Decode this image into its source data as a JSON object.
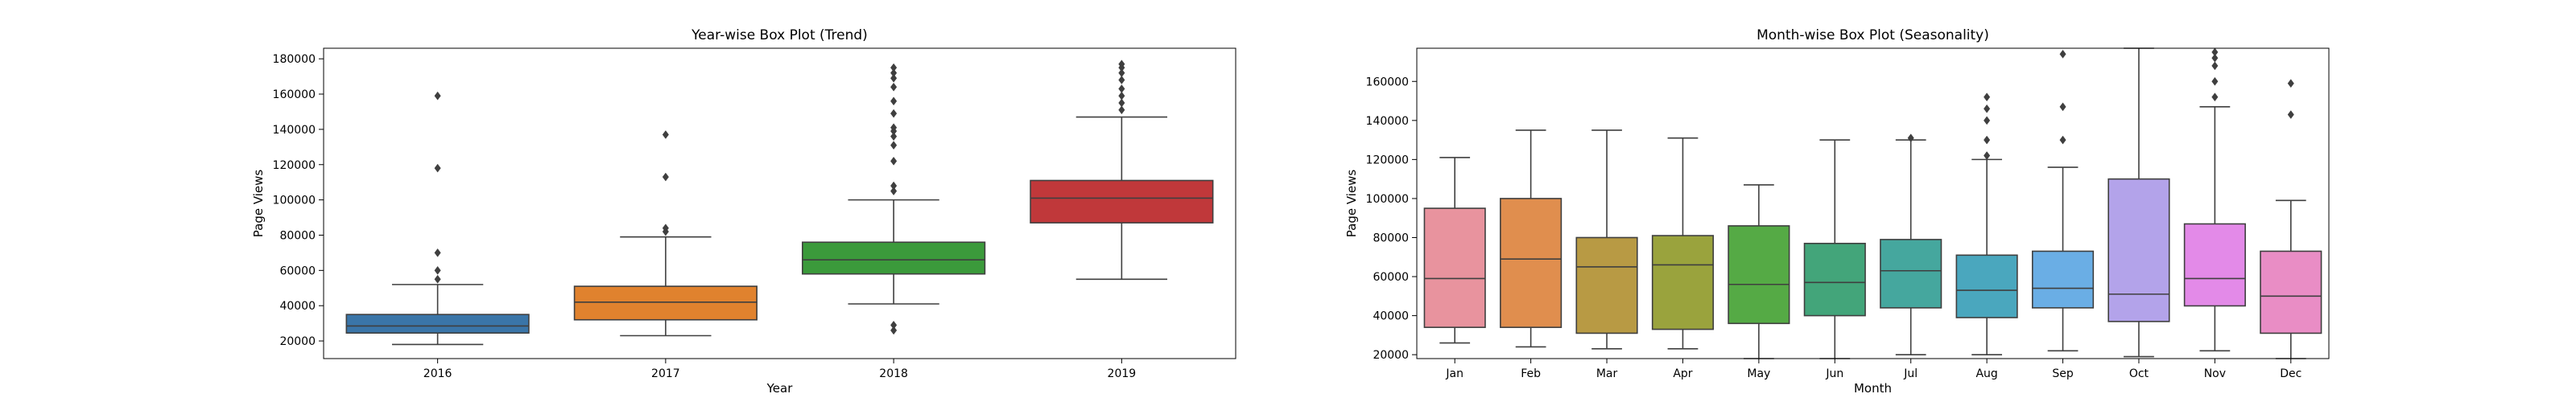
{
  "chart_data": [
    {
      "type": "box",
      "title": "Year-wise Box Plot (Trend)",
      "xlabel": "Year",
      "ylabel": "Page Views",
      "categories": [
        "2016",
        "2017",
        "2018",
        "2019"
      ],
      "ylim": [
        10000,
        186000
      ],
      "yticks": [
        20000,
        40000,
        60000,
        80000,
        100000,
        120000,
        140000,
        160000,
        180000
      ],
      "grid": false,
      "colors": [
        "#3a75a8",
        "#e0822e",
        "#3b9a3b",
        "#c0383a"
      ],
      "boxes": [
        {
          "category": "2016",
          "whislo": 18000,
          "q1": 24500,
          "med": 28500,
          "q3": 35000,
          "whishi": 52000,
          "fliers": [
            55000,
            60000,
            70000,
            118000,
            159000
          ]
        },
        {
          "category": "2017",
          "whislo": 23000,
          "q1": 32000,
          "med": 42000,
          "q3": 51000,
          "whishi": 79000,
          "fliers": [
            82000,
            84000,
            113000,
            137000
          ]
        },
        {
          "category": "2018",
          "whislo": 41000,
          "q1": 58000,
          "med": 66000,
          "q3": 76000,
          "whishi": 100000,
          "fliers": [
            26000,
            29000,
            105000,
            108000,
            122000,
            131000,
            136000,
            139000,
            141000,
            149000,
            156000,
            164000,
            169000,
            172000,
            175000
          ]
        },
        {
          "category": "2019",
          "whislo": 55000,
          "q1": 87000,
          "med": 101000,
          "q3": 111000,
          "whishi": 147000,
          "fliers": [
            151000,
            155000,
            159000,
            163000,
            168000,
            172000,
            175000,
            177000
          ]
        }
      ]
    },
    {
      "type": "box",
      "title": "Month-wise Box Plot (Seasonality)",
      "xlabel": "Month",
      "ylabel": "Page Views",
      "categories": [
        "Jan",
        "Feb",
        "Mar",
        "Apr",
        "May",
        "Jun",
        "Jul",
        "Aug",
        "Sep",
        "Oct",
        "Nov",
        "Dec"
      ],
      "ylim": [
        18000,
        177000
      ],
      "yticks": [
        20000,
        40000,
        60000,
        80000,
        100000,
        120000,
        140000,
        160000
      ],
      "grid": false,
      "colors": [
        "#e8939e",
        "#e08e4e",
        "#b89a44",
        "#9aa33d",
        "#55aa45",
        "#43a57a",
        "#45a79e",
        "#4aa7be",
        "#6aaee5",
        "#b3a3ea",
        "#e38ae8",
        "#e98dc5"
      ],
      "boxes": [
        {
          "category": "Jan",
          "whislo": 26000,
          "q1": 34000,
          "med": 59000,
          "q3": 95000,
          "whishi": 121000,
          "fliers": []
        },
        {
          "category": "Feb",
          "whislo": 24000,
          "q1": 34000,
          "med": 69000,
          "q3": 100000,
          "whishi": 135000,
          "fliers": []
        },
        {
          "category": "Mar",
          "whislo": 23000,
          "q1": 31000,
          "med": 65000,
          "q3": 80000,
          "whishi": 135000,
          "fliers": []
        },
        {
          "category": "Apr",
          "whislo": 23000,
          "q1": 33000,
          "med": 66000,
          "q3": 81000,
          "whishi": 131000,
          "fliers": []
        },
        {
          "category": "May",
          "whislo": 18000,
          "q1": 36000,
          "med": 56000,
          "q3": 86000,
          "whishi": 107000,
          "fliers": []
        },
        {
          "category": "Jun",
          "whislo": 18000,
          "q1": 40000,
          "med": 57000,
          "q3": 77000,
          "whishi": 130000,
          "fliers": []
        },
        {
          "category": "Jul",
          "whislo": 20000,
          "q1": 44000,
          "med": 63000,
          "q3": 79000,
          "whishi": 130000,
          "fliers": [
            131000
          ]
        },
        {
          "category": "Aug",
          "whislo": 20000,
          "q1": 39000,
          "med": 53000,
          "q3": 71000,
          "whishi": 120000,
          "fliers": [
            122000,
            130000,
            140000,
            146000,
            152000
          ]
        },
        {
          "category": "Sep",
          "whislo": 22000,
          "q1": 44000,
          "med": 54000,
          "q3": 73000,
          "whishi": 116000,
          "fliers": [
            130000,
            147000,
            174000
          ]
        },
        {
          "category": "Oct",
          "whislo": 19000,
          "q1": 37000,
          "med": 51000,
          "q3": 110000,
          "whishi": 177000,
          "fliers": []
        },
        {
          "category": "Nov",
          "whislo": 22000,
          "q1": 45000,
          "med": 59000,
          "q3": 87000,
          "whishi": 147000,
          "fliers": [
            152000,
            160000,
            168000,
            172000,
            175000
          ]
        },
        {
          "category": "Dec",
          "whislo": 18000,
          "q1": 31000,
          "med": 50000,
          "q3": 73000,
          "whishi": 99000,
          "fliers": [
            143000,
            159000
          ]
        }
      ]
    }
  ]
}
